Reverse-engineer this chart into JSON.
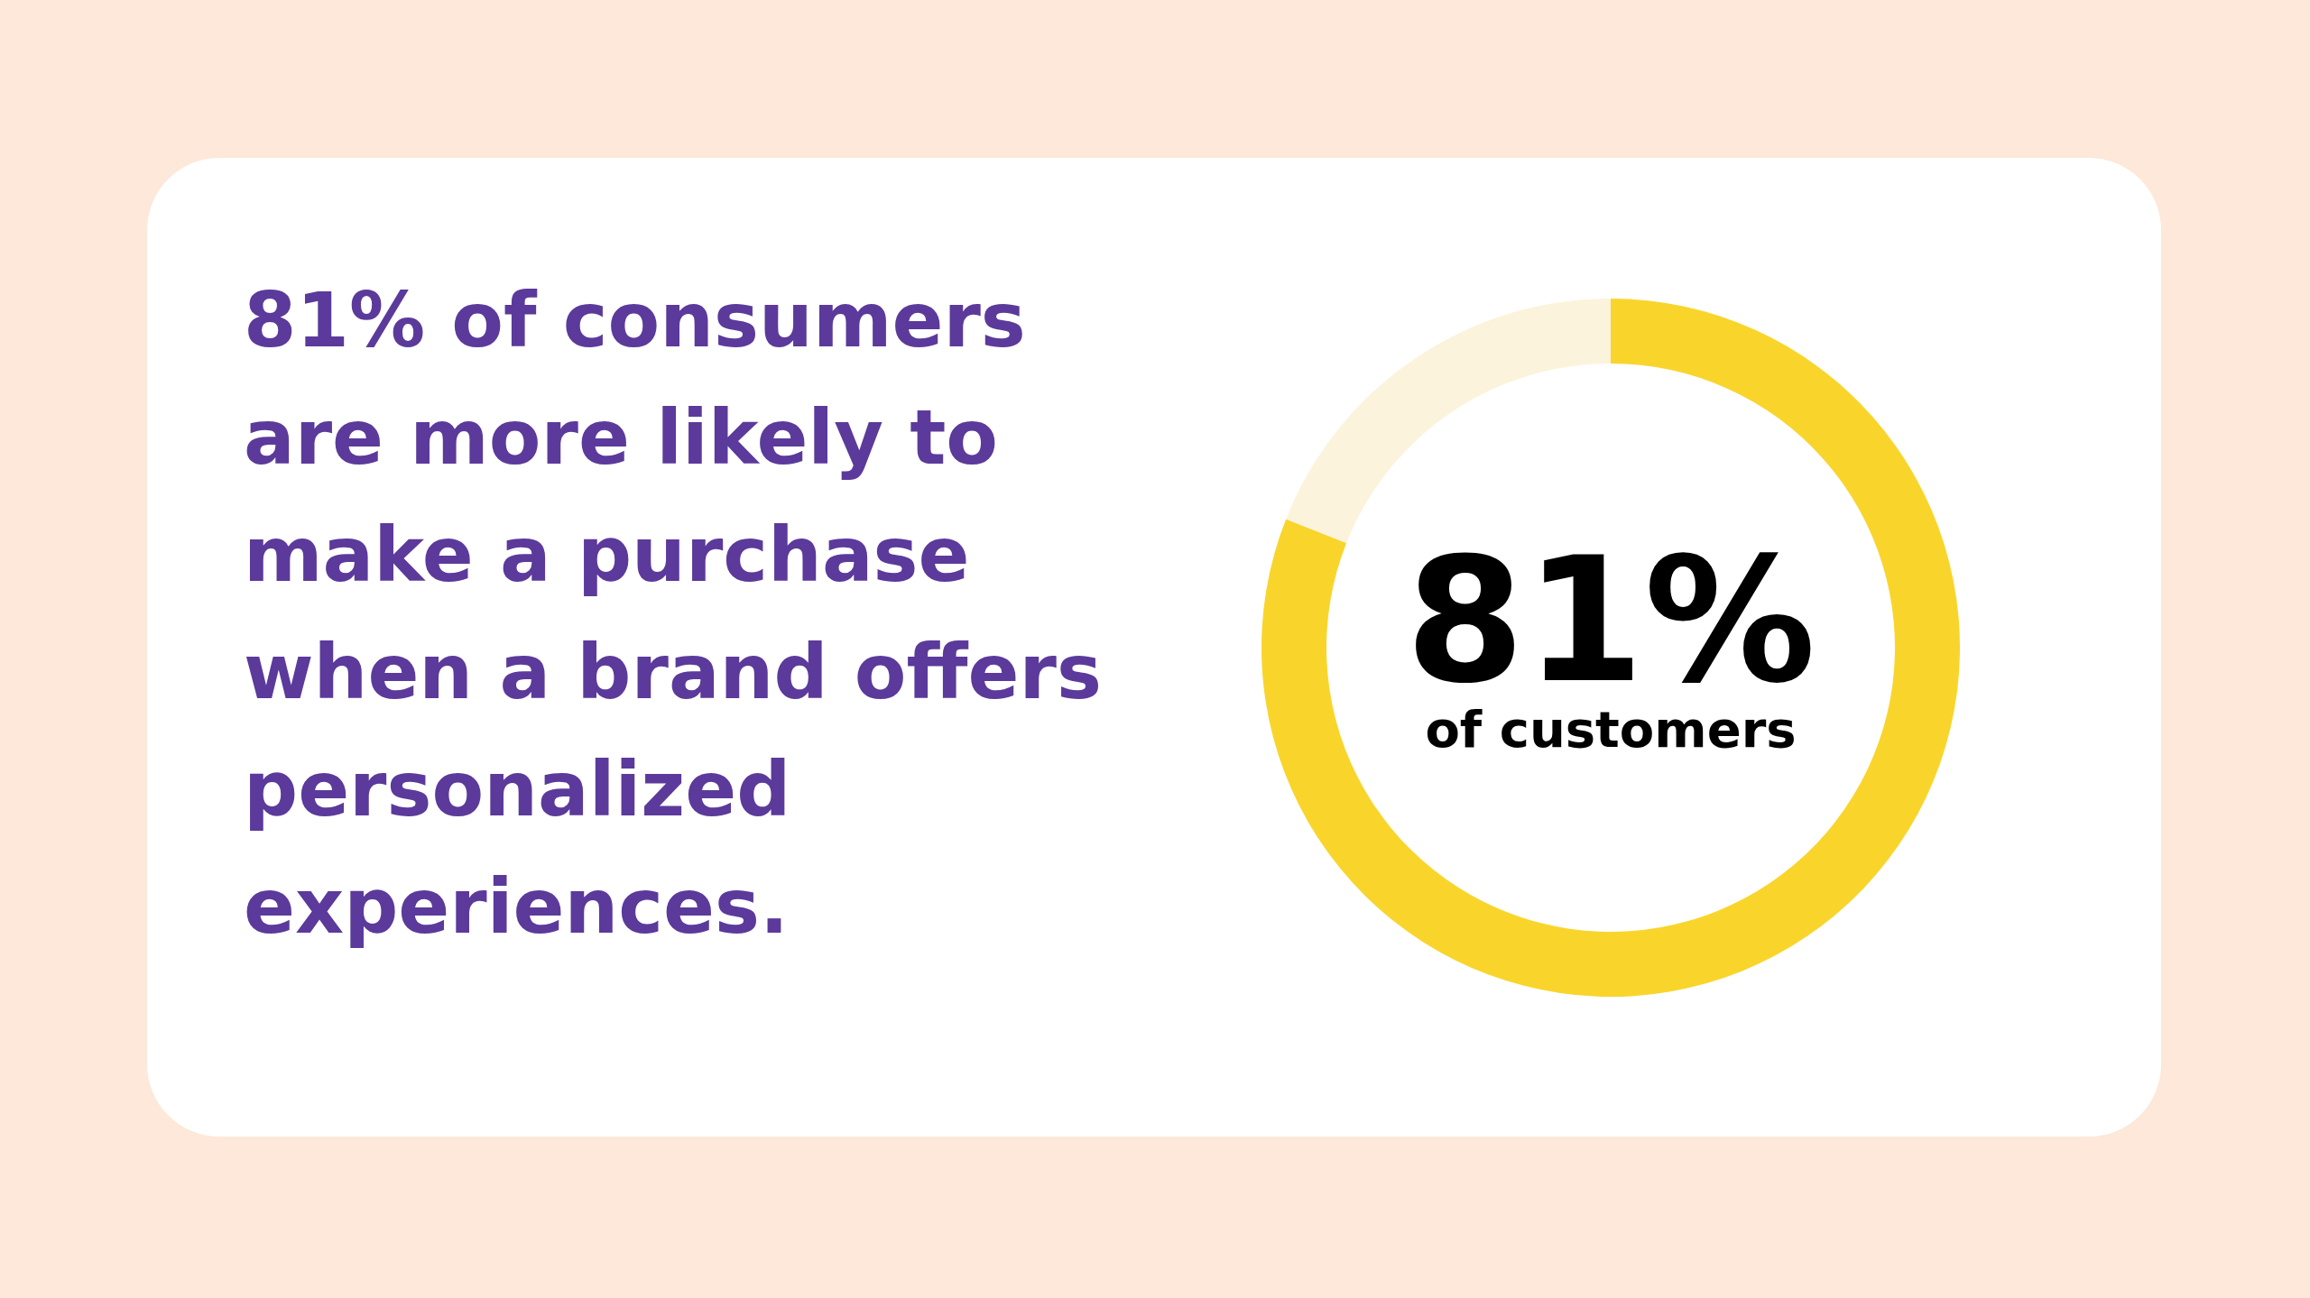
{
  "chart_data": {
    "type": "donut",
    "title": "81% of consumers are more likely to make a purchase when a brand offers personalized experiences.",
    "categories": [
      null,
      null
    ],
    "values": [
      81,
      19
    ],
    "colors": [
      "#f9d52c",
      "#fcf3dc"
    ],
    "value_labels": [
      "81%",
      null
    ],
    "annotations": [
      "of customers"
    ]
  }
}
